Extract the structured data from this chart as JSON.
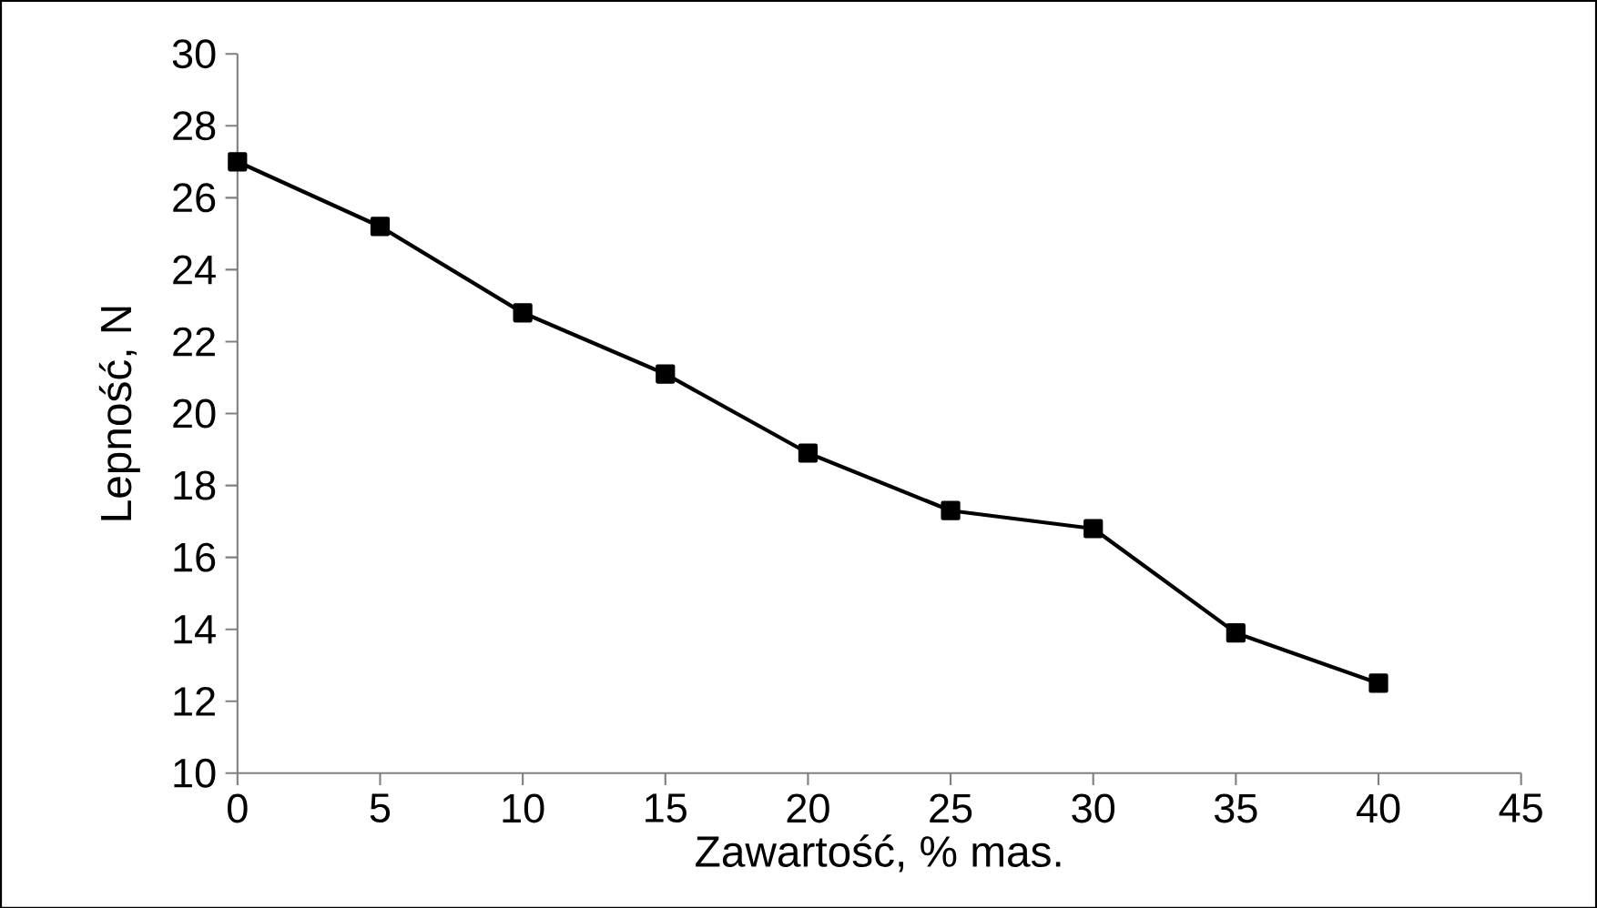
{
  "chart_data": {
    "type": "line",
    "xlabel": "Zawartość, % mas.",
    "ylabel": "Lepność, N",
    "x": [
      0,
      5,
      10,
      15,
      20,
      25,
      30,
      35,
      40
    ],
    "series": [
      {
        "color": "#000000",
        "values": [
          27,
          25.2,
          22.8,
          21.1,
          18.9,
          17.3,
          16.8,
          13.9,
          12.5
        ]
      }
    ],
    "xlim": [
      0,
      45
    ],
    "xticks": [
      0,
      5,
      10,
      15,
      20,
      25,
      30,
      35,
      40,
      45
    ],
    "ylim": [
      10,
      30
    ],
    "yticks": [
      10,
      12,
      14,
      16,
      18,
      20,
      22,
      24,
      26,
      28,
      30
    ],
    "marker": "square",
    "line_style": "solid",
    "grid": false
  }
}
